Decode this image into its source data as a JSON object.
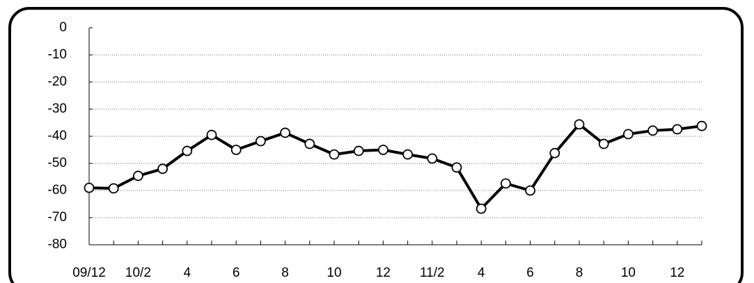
{
  "chart_data": {
    "type": "line",
    "categories": [
      "09/12",
      null,
      "10/2",
      null,
      "4",
      null,
      "6",
      null,
      "8",
      null,
      "10",
      null,
      "12",
      null,
      "11/2",
      null,
      "4",
      null,
      "6",
      null,
      "8",
      null,
      "10",
      null,
      "12",
      null
    ],
    "values": [
      -59,
      -59.2,
      -54.6,
      -52,
      -45.4,
      -39.5,
      -45,
      -41.8,
      -38.7,
      -42.8,
      -46.7,
      -45.4,
      -45,
      -46.7,
      -48.2,
      -51.5,
      -66.7,
      -57.4,
      -60,
      -46.2,
      -35.6,
      -42.8,
      -39.2,
      -37.9,
      -37.4,
      -36.2
    ],
    "color": "#000000",
    "ylim": [
      -80,
      0
    ],
    "yticks": [
      0,
      -10,
      -20,
      -30,
      -40,
      -50,
      -60,
      -70,
      -80
    ],
    "grid": true
  }
}
